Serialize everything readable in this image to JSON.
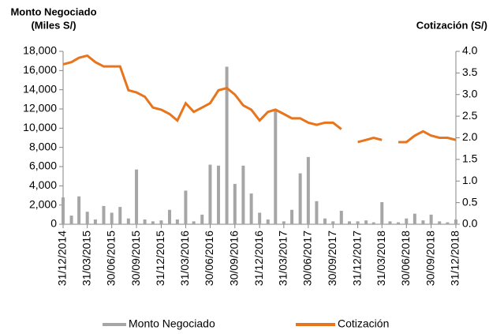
{
  "chart_data": {
    "type": "bar-line",
    "ylabel": [
      "Monto Negociado",
      "(Miles S/)"
    ],
    "y2label": "Cotización (S/)",
    "x": [
      "31/12/2014",
      "31/01/2015",
      "28/02/2015",
      "31/03/2015",
      "30/04/2015",
      "31/05/2015",
      "30/06/2015",
      "31/07/2015",
      "31/08/2015",
      "30/09/2015",
      "31/10/2015",
      "30/11/2015",
      "31/12/2015",
      "31/01/2016",
      "29/02/2016",
      "31/03/2016",
      "30/04/2016",
      "31/05/2016",
      "30/06/2016",
      "31/07/2016",
      "31/08/2016",
      "30/09/2016",
      "31/10/2016",
      "30/11/2016",
      "31/12/2016",
      "31/01/2017",
      "28/02/2017",
      "31/03/2017",
      "30/04/2017",
      "31/05/2017",
      "30/06/2017",
      "31/07/2017",
      "31/08/2017",
      "30/09/2017",
      "31/10/2017",
      "30/11/2017",
      "31/12/2017",
      "31/01/2018",
      "28/02/2018",
      "31/03/2018",
      "30/04/2018",
      "31/05/2018",
      "30/06/2018",
      "31/07/2018",
      "31/08/2018",
      "30/09/2018",
      "31/10/2018",
      "30/11/2018",
      "31/12/2018"
    ],
    "xlim": [
      "31/12/2014",
      "31/12/2018"
    ],
    "xticks": [
      "31/12/2014",
      "31/03/2015",
      "30/06/2015",
      "30/09/2015",
      "31/12/2015",
      "31/03/2016",
      "30/06/2016",
      "30/09/2016",
      "31/12/2016",
      "31/03/2017",
      "30/06/2017",
      "30/09/2017",
      "31/12/2017",
      "31/03/2018",
      "30/06/2018",
      "30/09/2018",
      "31/12/2018"
    ],
    "series": [
      {
        "name": "Monto Negociado",
        "color": "#a6a6a6",
        "axis": "y",
        "values": [
          2800,
          900,
          2900,
          1300,
          500,
          1900,
          1200,
          1800,
          600,
          5700,
          500,
          300,
          400,
          1500,
          500,
          3500,
          300,
          1000,
          6200,
          6100,
          16400,
          4200,
          6100,
          3200,
          1200,
          500,
          12000,
          300,
          1500,
          5300,
          7000,
          2400,
          600,
          300,
          1400,
          300,
          300,
          400,
          200,
          2300,
          300,
          200,
          600,
          1100,
          400,
          1000,
          300,
          200,
          500
        ]
      },
      {
        "name": "Cotización",
        "color": "#e8741c",
        "axis": "y2",
        "values": [
          3.7,
          3.75,
          3.85,
          3.9,
          3.75,
          3.65,
          3.65,
          3.65,
          3.1,
          3.05,
          2.95,
          2.7,
          2.65,
          2.55,
          2.4,
          2.8,
          2.6,
          2.7,
          2.8,
          3.1,
          3.15,
          3.0,
          2.75,
          2.65,
          2.4,
          2.6,
          2.65,
          2.55,
          2.45,
          2.45,
          2.35,
          2.3,
          2.35,
          2.35,
          2.2,
          null,
          1.9,
          1.95,
          2.0,
          1.95,
          null,
          1.9,
          1.9,
          2.05,
          2.15,
          2.05,
          2.0,
          2.0,
          1.95
        ]
      }
    ],
    "ylim": [
      0,
      18000
    ],
    "yticks": [
      0,
      {
        "value": 2000,
        "label": "2,000"
      },
      {
        "value": 4000,
        "label": "4,000"
      },
      {
        "value": 6000,
        "label": "6,000"
      },
      {
        "value": 8000,
        "label": "8,000"
      },
      {
        "value": 10000,
        "label": "10,000"
      },
      {
        "value": 12000,
        "label": "12,000"
      },
      {
        "value": 14000,
        "label": "14,000"
      },
      {
        "value": 16000,
        "label": "16,000"
      },
      {
        "value": 18000,
        "label": "18,000"
      }
    ],
    "y2lim": [
      0,
      4
    ],
    "y2ticks": [
      {
        "value": 0,
        "label": "0.0"
      },
      0.5,
      {
        "value": 1,
        "label": "1.0"
      },
      1.5,
      {
        "value": 2,
        "label": "2.0"
      },
      2.5,
      {
        "value": 3,
        "label": "3.0"
      },
      3.5,
      {
        "value": 4,
        "label": "4.0"
      }
    ],
    "legend": "bottom"
  }
}
